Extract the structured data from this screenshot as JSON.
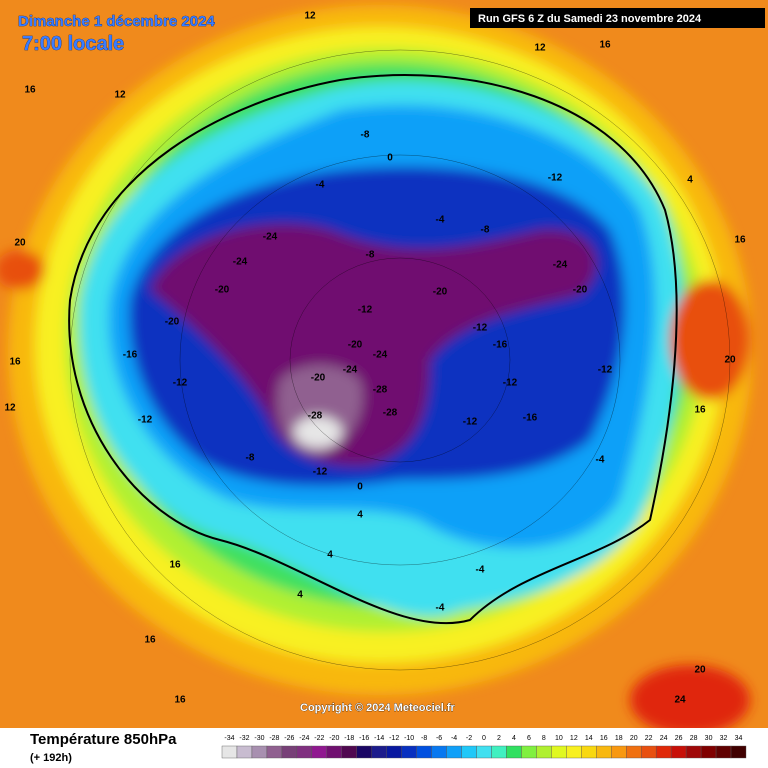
{
  "header": {
    "date": "Dimanche 1 décembre 2024",
    "time": "7:00 locale",
    "run": "Run GFS 6 Z du Samedi 23 novembre 2024"
  },
  "copyright": "Copyright © 2024 Meteociel.fr",
  "footer": {
    "title": "Température 850hPa",
    "lead": "(+ 192h)"
  },
  "legend": {
    "values": [
      -34,
      -32,
      -30,
      -28,
      -26,
      -24,
      -22,
      -20,
      -18,
      -16,
      -14,
      -12,
      -10,
      -8,
      -6,
      -4,
      -2,
      0,
      2,
      4,
      6,
      8,
      10,
      12,
      14,
      16,
      18,
      20,
      22,
      24,
      26,
      28,
      30,
      32,
      34
    ],
    "colors": [
      "#e6e6e6",
      "#c8bcd0",
      "#a890b0",
      "#906090",
      "#784078",
      "#803080",
      "#901890",
      "#701070",
      "#500850",
      "#1a0664",
      "#1c1c8c",
      "#0818a0",
      "#0830c0",
      "#0050e0",
      "#0878f0",
      "#10a0f8",
      "#20c8f8",
      "#40e0f0",
      "#40f0c0",
      "#30e060",
      "#80f040",
      "#b0f030",
      "#e0f820",
      "#f8f020",
      "#f8d810",
      "#f8b810",
      "#f89810",
      "#f07010",
      "#e85010",
      "#e02808",
      "#c81008",
      "#a00808",
      "#800000",
      "#600000",
      "#400000"
    ]
  },
  "map_labels": [
    -12,
    -20,
    -24,
    -24,
    -20,
    -20,
    -16,
    -12,
    -12,
    -8,
    -12,
    0,
    -20,
    -24,
    -24,
    -20,
    -28,
    -28,
    -28,
    -12,
    -16,
    -12,
    -12,
    -16,
    -12,
    -8,
    -4,
    -8,
    0,
    -4,
    -8,
    -24,
    -20,
    -12,
    -4,
    -4,
    -4,
    4,
    4,
    4,
    16,
    16,
    16,
    16,
    20,
    16,
    12,
    16,
    20,
    24,
    20,
    12,
    12,
    16,
    12,
    4,
    16
  ]
}
